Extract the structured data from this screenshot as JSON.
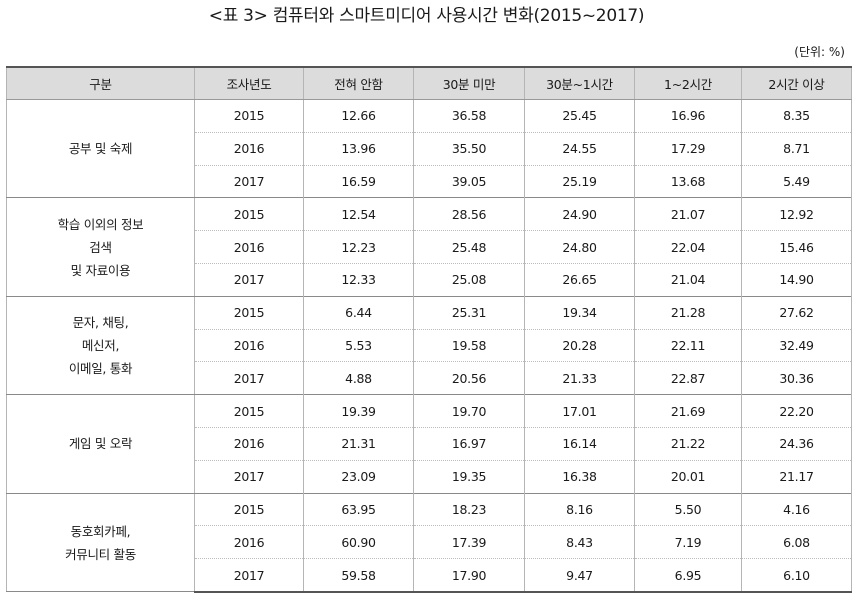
{
  "title": "<표 3> 컴퓨터와 스마트미디어 사용시간 변화(2015~2017)",
  "unit": "(단위: %)",
  "headers": [
    "구분",
    "조사년도",
    "전혀 안함",
    "30분 미만",
    "30분~1시간",
    "1~2시간",
    "2시간 이상"
  ],
  "groups": [
    {
      "label_lines": [
        "공부 및 숙제"
      ],
      "rows": [
        {
          "year": "2015",
          "values": [
            "12.66",
            "36.58",
            "25.45",
            "16.96",
            "8.35"
          ]
        },
        {
          "year": "2016",
          "values": [
            "13.96",
            "35.50",
            "24.55",
            "17.29",
            "8.71"
          ]
        },
        {
          "year": "2017",
          "values": [
            "16.59",
            "39.05",
            "25.19",
            "13.68",
            "5.49"
          ]
        }
      ]
    },
    {
      "label_lines": [
        "학습 이외의 정보",
        "검색",
        "및 자료이용"
      ],
      "rows": [
        {
          "year": "2015",
          "values": [
            "12.54",
            "28.56",
            "24.90",
            "21.07",
            "12.92"
          ]
        },
        {
          "year": "2016",
          "values": [
            "12.23",
            "25.48",
            "24.80",
            "22.04",
            "15.46"
          ]
        },
        {
          "year": "2017",
          "values": [
            "12.33",
            "25.08",
            "26.65",
            "21.04",
            "14.90"
          ]
        }
      ]
    },
    {
      "label_lines": [
        "문자, 채팅,",
        "메신저,",
        "이메일, 통화"
      ],
      "rows": [
        {
          "year": "2015",
          "values": [
            "6.44",
            "25.31",
            "19.34",
            "21.28",
            "27.62"
          ]
        },
        {
          "year": "2016",
          "values": [
            "5.53",
            "19.58",
            "20.28",
            "22.11",
            "32.49"
          ]
        },
        {
          "year": "2017",
          "values": [
            "4.88",
            "20.56",
            "21.33",
            "22.87",
            "30.36"
          ]
        }
      ]
    },
    {
      "label_lines": [
        "게임 및 오락"
      ],
      "rows": [
        {
          "year": "2015",
          "values": [
            "19.39",
            "19.70",
            "17.01",
            "21.69",
            "22.20"
          ]
        },
        {
          "year": "2016",
          "values": [
            "21.31",
            "16.97",
            "16.14",
            "21.22",
            "24.36"
          ]
        },
        {
          "year": "2017",
          "values": [
            "23.09",
            "19.35",
            "16.38",
            "20.01",
            "21.17"
          ]
        }
      ]
    },
    {
      "label_lines": [
        "동호회카페,",
        "커뮤니티 활동"
      ],
      "rows": [
        {
          "year": "2015",
          "values": [
            "63.95",
            "18.23",
            "8.16",
            "5.50",
            "4.16"
          ]
        },
        {
          "year": "2016",
          "values": [
            "60.90",
            "17.39",
            "8.43",
            "7.19",
            "6.08"
          ]
        },
        {
          "year": "2017",
          "values": [
            "59.58",
            "17.90",
            "9.47",
            "6.95",
            "6.10"
          ]
        }
      ]
    }
  ]
}
